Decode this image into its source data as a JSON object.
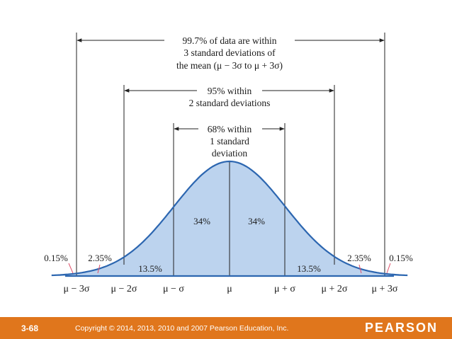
{
  "ranges": {
    "three_sigma": [
      "99.7% of data are within",
      "3 standard deviations of",
      "the mean (μ − 3σ to μ + 3σ)"
    ],
    "two_sigma": [
      "95% within",
      "2 standard deviations"
    ],
    "one_sigma": [
      "68% within",
      "1 standard",
      "deviation"
    ]
  },
  "regions": {
    "center_left": "34%",
    "center_right": "34%",
    "mid_left": "13.5%",
    "mid_right": "13.5%",
    "outer_left": "2.35%",
    "outer_right": "2.35%",
    "tail_left": "0.15%",
    "tail_right": "0.15%"
  },
  "axis_labels": [
    "μ − 3σ",
    "μ − 2σ",
    "μ − σ",
    "μ",
    "μ + σ",
    "μ + 2σ",
    "μ + 3σ"
  ],
  "colors": {
    "curve": "#2c66b0",
    "fill": "#bcd3ee",
    "footer": "#e0761c"
  },
  "footer": {
    "slide_number": "3-68",
    "copyright": "Copyright © 2014, 2013, 2010 and 2007 Pearson Education, Inc.",
    "brand": "PEARSON"
  }
}
